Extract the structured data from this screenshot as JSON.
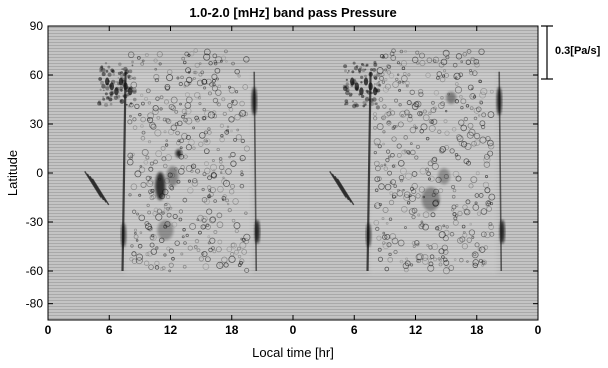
{
  "chart_data": {
    "type": "heatmap",
    "title": "1.0-2.0 [mHz] band pass Pressure",
    "xlabel": "Local time [hr]",
    "ylabel": "Latitude",
    "x_ticks": [
      "0",
      "6",
      "12",
      "18",
      "0",
      "6",
      "12",
      "18",
      "0"
    ],
    "y_ticks": [
      90,
      60,
      30,
      0,
      -30,
      -60,
      -80
    ],
    "ylim": [
      -90,
      90
    ],
    "scale_bar": {
      "label": "0.3[Pa/s]",
      "value": 0.3,
      "unit": "Pa/s"
    },
    "grid": false,
    "colormap": "grayscale",
    "colors": {
      "feature": "#111111",
      "background": "#b8b8b8",
      "frame": "#000000"
    }
  }
}
